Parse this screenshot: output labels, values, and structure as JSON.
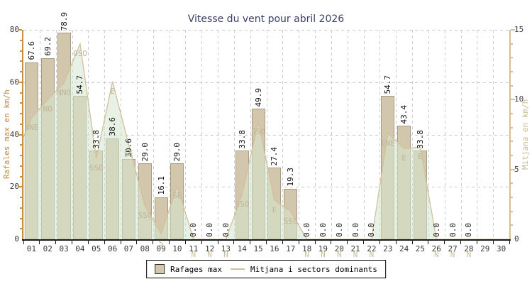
{
  "chart_data": {
    "type": "bar",
    "title": "Vitesse du vent pour abril 2026",
    "categories": [
      "01",
      "02",
      "03",
      "04",
      "05",
      "06",
      "07",
      "08",
      "09",
      "10",
      "11",
      "12",
      "13",
      "14",
      "15",
      "16",
      "17",
      "18",
      "19",
      "20",
      "21",
      "22",
      "23",
      "24",
      "25",
      "26",
      "27",
      "28",
      "29",
      "30"
    ],
    "series": [
      {
        "name": "Rafages max",
        "type": "bar",
        "yaxis": "left",
        "values": [
          67.6,
          69.2,
          78.9,
          54.7,
          33.8,
          38.6,
          30.6,
          29.0,
          16.1,
          29.0,
          0.0,
          0.0,
          0.0,
          33.8,
          49.9,
          27.4,
          19.3,
          0.0,
          0.0,
          0.0,
          0.0,
          0.0,
          54.7,
          43.4,
          33.8,
          0.0,
          0.0,
          0.0,
          null,
          null
        ]
      },
      {
        "name": "Mitjana i sectors dominants",
        "type": "area",
        "yaxis": "right",
        "values": [
          8.7,
          10.0,
          11.2,
          14.0,
          5.8,
          11.3,
          6.8,
          2.4,
          0.4,
          3.8,
          0,
          0,
          0,
          3.2,
          8.4,
          2.8,
          2.0,
          0,
          0,
          0,
          0,
          0,
          7.6,
          6.5,
          6.6,
          0,
          0,
          0,
          0,
          0
        ],
        "left_edge_value": 7.3
      }
    ],
    "dominant_sectors": [
      "NNE",
      "NO",
      "NNO",
      "OSO",
      "SSO",
      "E",
      "SE",
      "SSO",
      "S",
      "SE",
      "N",
      "N",
      "N",
      "SSO",
      "OSO",
      "E",
      "SSO",
      "N",
      "N",
      "N",
      "N",
      "N",
      "ENE",
      "E",
      "E",
      "N",
      "N",
      "N",
      null,
      null
    ],
    "ylabel_left": "Rafales max en km/h",
    "ylabel_right": "Mitjana en km/h",
    "ylim_left": [
      0,
      80
    ],
    "ylim_right": [
      0,
      15
    ],
    "yticks_left": [
      0,
      20,
      40,
      60,
      80
    ],
    "yticks_right": [
      0,
      5,
      10,
      15
    ],
    "grid": true,
    "legend_position": "bottom-center"
  },
  "legend": {
    "items": [
      {
        "label": "Rafages max",
        "swatch": "bar"
      },
      {
        "label": "Mitjana i sectors dominants",
        "swatch": "line"
      }
    ]
  },
  "colors": {
    "title": "#3c4166",
    "bar": "#d2c7ac",
    "bar_border": "#a59b82",
    "area_fill": "rgba(213,229,208,0.55)",
    "area_line": "#d4bf9b",
    "sector_label": "#bfb499",
    "sector_label_calm": "#cdbd9a",
    "left_axis": "#c59040",
    "right_axis": "#d2c096",
    "left_axis_title": "#bd8a42",
    "right_axis_title": "#c6b88f",
    "x_axis": "#1a1a1a",
    "grid": "#cbcbcb"
  }
}
